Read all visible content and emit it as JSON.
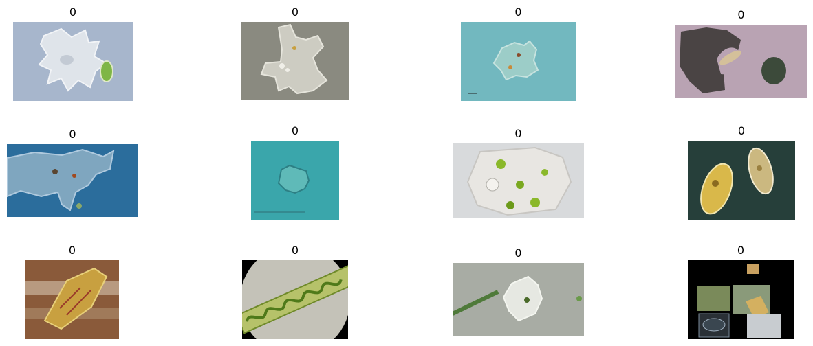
{
  "grid": {
    "items": [
      {
        "label": "0",
        "subject": "amoeba-with-green-cell"
      },
      {
        "label": "0",
        "subject": "amoeba-on-grey"
      },
      {
        "label": "0",
        "subject": "amoeba-on-teal"
      },
      {
        "label": "0",
        "subject": "amoeba-engulfing-prey"
      },
      {
        "label": "0",
        "subject": "amoeba-on-blue"
      },
      {
        "label": "0",
        "subject": "small-amoeba-on-teal"
      },
      {
        "label": "0",
        "subject": "amoeba-with-green-vacuoles"
      },
      {
        "label": "0",
        "subject": "paramecium-pair"
      },
      {
        "label": "0",
        "subject": "diatom-on-brown"
      },
      {
        "label": "0",
        "subject": "spirogyra-filament"
      },
      {
        "label": "0",
        "subject": "amoeba-with-filament"
      },
      {
        "label": "0",
        "subject": "collage-on-black"
      }
    ]
  }
}
